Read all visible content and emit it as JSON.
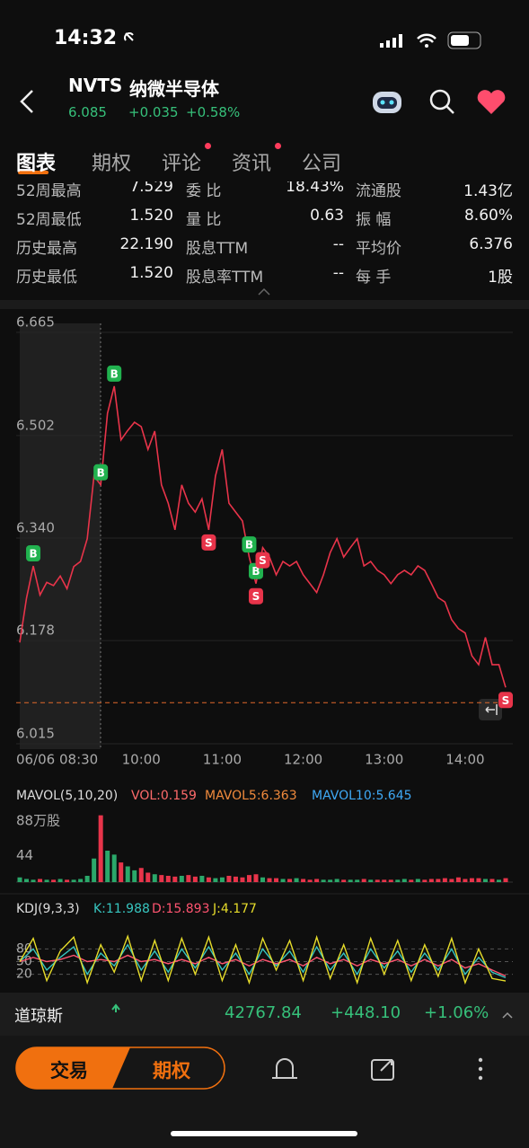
{
  "status": {
    "time": "14:32"
  },
  "header": {
    "symbol": "NVTS",
    "name": "纳微半导体",
    "price": "6.085",
    "change": "+0.035",
    "change_pct": "+0.58%"
  },
  "tabs": [
    "图表",
    "期权",
    "评论",
    "资讯",
    "公司"
  ],
  "stats": [
    [
      "52周最高",
      "7.529",
      "委 比",
      "18.43%",
      "流通股",
      "1.43亿"
    ],
    [
      "52周最低",
      "1.520",
      "量 比",
      "0.63",
      "振 幅",
      "8.60%"
    ],
    [
      "历史最高",
      "22.190",
      "股息TTM",
      "--",
      "平均价",
      "6.376"
    ],
    [
      "历史最低",
      "1.520",
      "股息率TTM",
      "--",
      "每 手",
      "1股"
    ]
  ],
  "indicators": {
    "vol": [
      "MAVOL(5,10,20)",
      "VOL:0.159",
      "MAVOL5:6.363",
      "MAVOL10:5.645"
    ],
    "kdj": [
      "KDJ(9,3,3)",
      "K:11.988",
      "D:15.893",
      "J:4.177"
    ]
  },
  "ticker": {
    "name": "道琼斯",
    "value": "42767.84",
    "change": "+448.10",
    "change_pct": "+1.06%"
  },
  "buttons": [
    "交易",
    "期权"
  ],
  "chart_data": [
    {
      "type": "line",
      "color": "#e8344a",
      "categories": [
        "06/06 08:30",
        null,
        null,
        null,
        null,
        null,
        null,
        null,
        null,
        null,
        null,
        null,
        null,
        null,
        null,
        null,
        null,
        null,
        "10:00",
        null,
        null,
        null,
        null,
        null,
        null,
        null,
        null,
        null,
        null,
        null,
        "11:00",
        null,
        null,
        null,
        null,
        null,
        null,
        null,
        null,
        null,
        null,
        null,
        "12:00",
        null,
        null,
        null,
        null,
        null,
        null,
        null,
        null,
        null,
        null,
        null,
        "13:00",
        null,
        null,
        null,
        null,
        null,
        null,
        null,
        null,
        null,
        null,
        null,
        "14:00",
        null,
        null,
        null,
        null,
        null,
        null
      ],
      "values": [
        6.175,
        6.245,
        6.296,
        6.25,
        6.27,
        6.265,
        6.28,
        6.26,
        6.295,
        6.303,
        6.339,
        6.438,
        6.424,
        6.537,
        6.58,
        6.495,
        6.51,
        6.523,
        6.516,
        6.48,
        6.509,
        6.424,
        6.395,
        6.353,
        6.424,
        6.395,
        6.381,
        6.402,
        6.353,
        6.438,
        6.48,
        6.395,
        6.381,
        6.367,
        6.31,
        6.268,
        6.325,
        6.31,
        6.282,
        6.303,
        6.296,
        6.303,
        6.282,
        6.268,
        6.254,
        6.282,
        6.317,
        6.339,
        6.31,
        6.325,
        6.339,
        6.296,
        6.303,
        6.289,
        6.282,
        6.268,
        6.282,
        6.289,
        6.282,
        6.296,
        6.289,
        6.268,
        6.246,
        6.239,
        6.211,
        6.197,
        6.19,
        6.154,
        6.14,
        6.183,
        6.14,
        6.14,
        6.104
      ],
      "ylim": [
        6.015,
        6.665
      ],
      "yticks": [
        6.665,
        6.502,
        {
          "value": 6.34,
          "label": "6.340"
        },
        6.178,
        6.015
      ],
      "grid": true,
      "reference_line": 6.08,
      "signals": [
        {
          "label": "B",
          "index": 2
        },
        {
          "label": "B",
          "index": 12
        },
        {
          "label": "B",
          "index": 14
        },
        {
          "label": "S",
          "index": 28
        },
        {
          "label": "B",
          "index": 34
        },
        {
          "label": "B",
          "index": 35
        },
        {
          "label": "S",
          "index": 35
        },
        {
          "label": "S",
          "index": 36
        },
        {
          "label": "S",
          "index": 72
        }
      ]
    },
    {
      "type": "bar",
      "up_color": "#2aa86a",
      "down_color": "#e8344a",
      "values": [
        6,
        4,
        3,
        4,
        3,
        3,
        4,
        3,
        3,
        4,
        8,
        30,
        85,
        40,
        35,
        25,
        20,
        15,
        18,
        12,
        10,
        9,
        8,
        7,
        8,
        9,
        7,
        8,
        6,
        5,
        6,
        8,
        7,
        6,
        9,
        10,
        6,
        5,
        5,
        4,
        4,
        5,
        4,
        3,
        4,
        3,
        3,
        4,
        3,
        3,
        3,
        4,
        3,
        3,
        3,
        3,
        3,
        4,
        3,
        4,
        3,
        4,
        4,
        5,
        4,
        6,
        4,
        5,
        5,
        4,
        4,
        3,
        5
      ],
      "ylim": [
        0,
        88
      ],
      "yticks": [
        {
          "value": 88,
          "label": "88万股"
        },
        44
      ]
    },
    {
      "type": "line",
      "ylim": [
        0,
        100
      ],
      "yticks": [
        80,
        50,
        20
      ],
      "series": [
        {
          "color": "#37c6c0",
          "values": [
            50,
            80,
            30,
            60,
            85,
            20,
            70,
            40,
            90,
            30,
            75,
            25,
            80,
            35,
            85,
            30,
            70,
            20,
            80,
            40,
            75,
            25,
            85,
            30,
            70,
            20,
            80,
            35,
            75,
            25,
            70,
            30,
            80,
            20,
            60,
            25,
            12
          ]
        },
        {
          "color": "#ff5470",
          "values": [
            50,
            60,
            50,
            55,
            65,
            50,
            55,
            50,
            65,
            50,
            55,
            45,
            55,
            45,
            60,
            45,
            55,
            40,
            55,
            45,
            55,
            40,
            60,
            45,
            55,
            40,
            55,
            45,
            55,
            40,
            55,
            40,
            55,
            35,
            45,
            30,
            16
          ]
        },
        {
          "color": "#e6dc2a",
          "values": [
            50,
            105,
            5,
            75,
            108,
            0,
            90,
            25,
            110,
            5,
            100,
            5,
            105,
            20,
            108,
            5,
            90,
            0,
            105,
            30,
            100,
            5,
            108,
            10,
            90,
            0,
            105,
            20,
            100,
            5,
            90,
            15,
            105,
            0,
            80,
            10,
            4
          ]
        }
      ]
    }
  ]
}
